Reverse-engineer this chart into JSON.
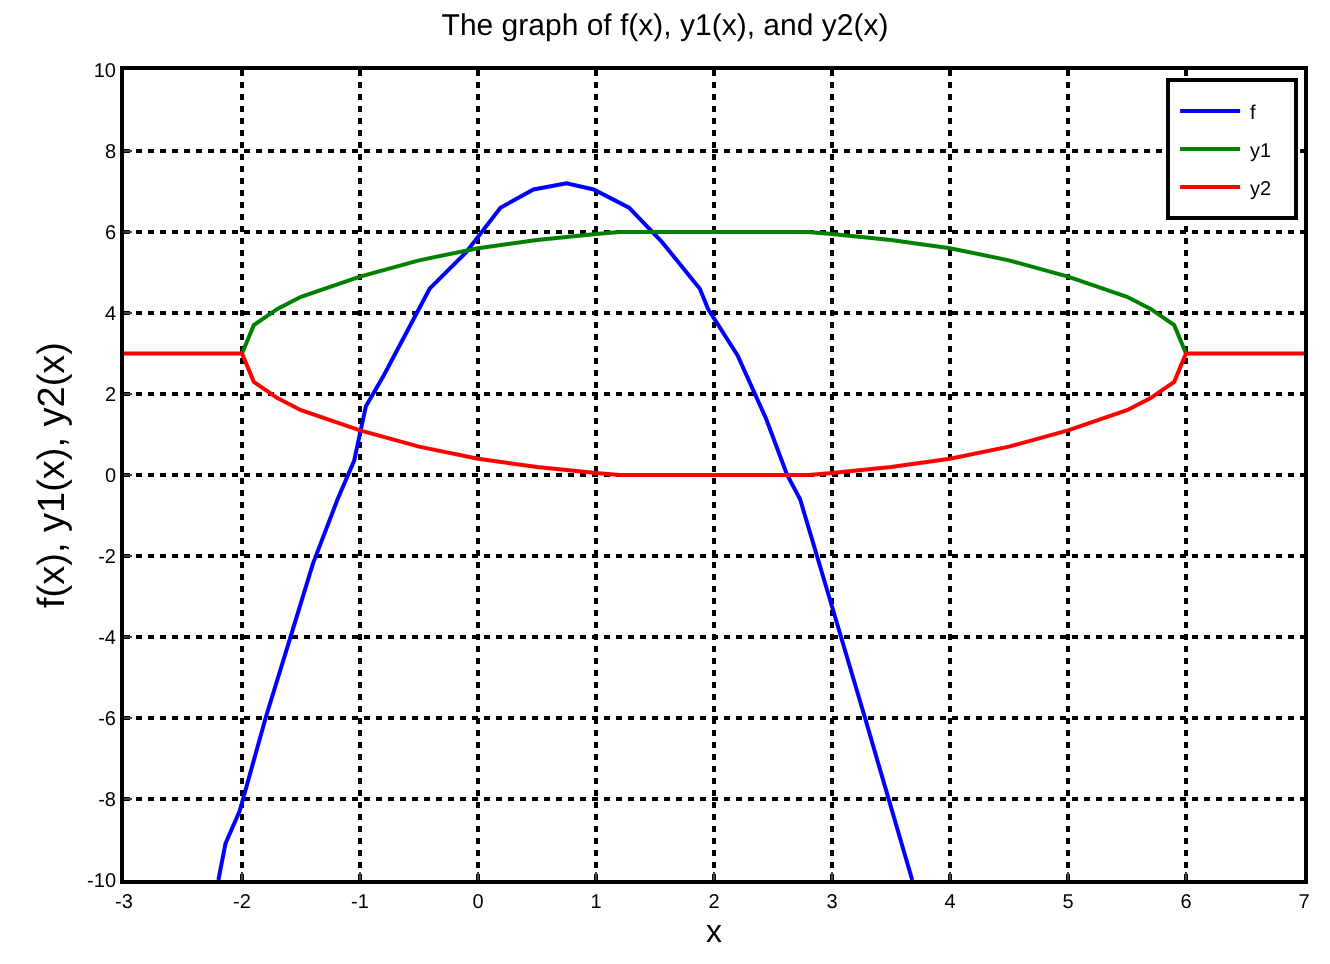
{
  "chart_data": {
    "type": "line",
    "title": "The graph of f(x), y1(x), and y2(x)",
    "xlabel": "x",
    "ylabel": "f(x), y1(x), y2(x)",
    "xlim": [
      -3,
      7
    ],
    "xticks": [
      -3,
      -2,
      -1,
      0,
      1,
      2,
      3,
      4,
      5,
      6,
      7
    ],
    "ylim": [
      -10,
      10
    ],
    "yticks": [
      -10,
      -8,
      -6,
      -4,
      -2,
      0,
      2,
      4,
      6,
      8,
      10
    ],
    "grid": true,
    "legend": "top right",
    "line_style": "solid",
    "series": [
      {
        "name": "f",
        "color": "#0000ff",
        "x": [
          -2.2,
          -2.14,
          -2.02,
          -1.8,
          -1.61,
          -1.4,
          -1.19,
          -1.05,
          -0.95,
          -0.8,
          -0.41,
          -0.1,
          0.19,
          0.47,
          0.75,
          0.98,
          1.28,
          1.56,
          1.88,
          1.95,
          2.2,
          2.44,
          2.62,
          2.73,
          2.98,
          3.29,
          3.68
        ],
        "values": [
          -10,
          -9.1,
          -8.3,
          -6,
          -4.2,
          -2.2,
          -0.6,
          0.35,
          1.7,
          2.45,
          4.6,
          5.5,
          6.6,
          7.05,
          7.2,
          7.05,
          6.6,
          5.75,
          4.6,
          4.1,
          2.95,
          1.4,
          0,
          -0.6,
          -3.05,
          -6.1,
          -10
        ]
      },
      {
        "name": "y1",
        "color": "#008000",
        "x": [
          -2,
          -1.9,
          -1.7,
          -1.5,
          -1,
          -0.5,
          0,
          0.5,
          1,
          1.2,
          2,
          2.8,
          3,
          3.5,
          4,
          4.5,
          5,
          5.5,
          5.7,
          5.9,
          6
        ],
        "values": [
          3,
          3.7,
          4.1,
          4.4,
          4.9,
          5.3,
          5.6,
          5.8,
          5.95,
          6,
          6,
          6,
          5.95,
          5.8,
          5.6,
          5.3,
          4.9,
          4.4,
          4.1,
          3.7,
          3
        ]
      },
      {
        "name": "y2",
        "color": "#ff0000",
        "x": [
          -3,
          -2,
          -1.9,
          -1.7,
          -1.5,
          -1,
          -0.5,
          0,
          0.5,
          1,
          1.2,
          2,
          2.8,
          3,
          3.5,
          4,
          4.5,
          5,
          5.5,
          5.7,
          5.9,
          6,
          7
        ],
        "values": [
          3,
          3,
          2.3,
          1.9,
          1.6,
          1.1,
          0.7,
          0.4,
          0.2,
          0.05,
          0,
          0,
          0,
          0.05,
          0.2,
          0.4,
          0.7,
          1.1,
          1.6,
          1.9,
          2.3,
          3,
          3
        ]
      }
    ]
  }
}
